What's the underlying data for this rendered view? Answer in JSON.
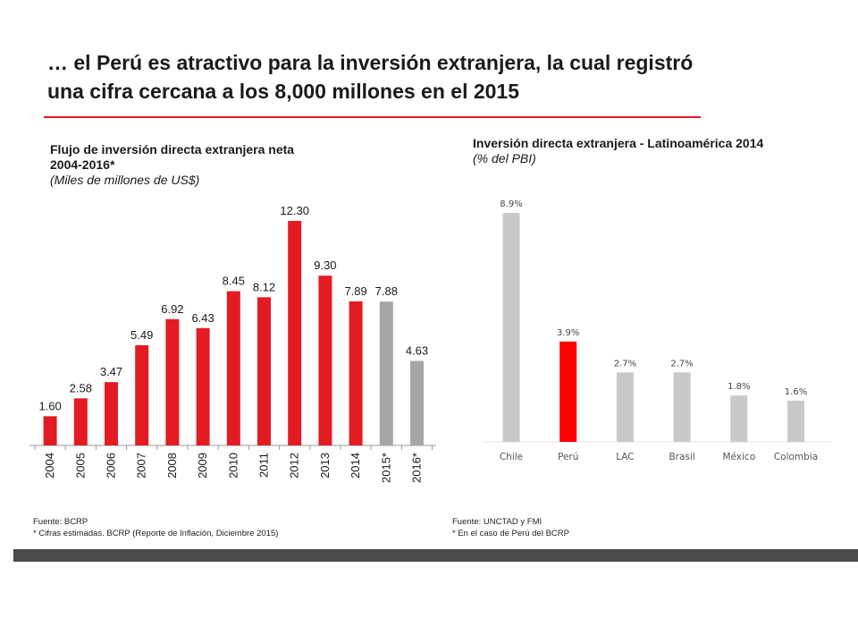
{
  "headline": {
    "line1": "… el Perú es atractivo para la inversión extranjera, la cual registró",
    "line2": "una cifra cercana a los 8,000 millones en el 2015"
  },
  "colors": {
    "accent_red": "#e31b23",
    "estimate_gray": "#a6a6a6",
    "comparison_gray": "#c9c9c9",
    "bar_red": "#ff0000"
  },
  "left_chart": {
    "title_line1": "Flujo de inversión directa extranjera neta",
    "title_line2": "2004-2016*",
    "unit": "(Miles de millones de US$)",
    "source": "Fuente: BCRP",
    "footnote": "* Cifras estimadas. BCRP (Reporte de Inflación, Diciembre 2015)"
  },
  "right_chart": {
    "title": "Inversión directa extranjera - Latinoamérica  2014",
    "unit": "(% del PBI)",
    "source": "Fuente: UNCTAD y FMI",
    "footnote": "* En el caso de Perú del BCRP"
  },
  "chart_data": [
    {
      "type": "bar",
      "title": "Flujo de inversión directa extranjera neta 2004-2016*",
      "ylabel": "(Miles de millones de US$)",
      "categories": [
        "2004",
        "2005",
        "2006",
        "2007",
        "2008",
        "2009",
        "2010",
        "2011",
        "2012",
        "2013",
        "2014",
        "2015*",
        "2016*"
      ],
      "values": [
        1.6,
        2.58,
        3.47,
        5.49,
        6.92,
        6.43,
        8.45,
        8.12,
        12.3,
        9.3,
        7.89,
        7.88,
        4.63
      ],
      "value_labels": [
        "1.60",
        "2.58",
        "3.47",
        "5.49",
        "6.92",
        "6.43",
        "8.45",
        "8.12",
        "12.30",
        "9.30",
        "7.89",
        "7.88",
        "4.63"
      ],
      "estimated": [
        false,
        false,
        false,
        false,
        false,
        false,
        false,
        false,
        false,
        false,
        false,
        true,
        true
      ],
      "ylim": [
        0,
        13
      ],
      "grid": false,
      "legend": "none"
    },
    {
      "type": "bar",
      "title": "Inversión directa extranjera - Latinoamérica  2014",
      "ylabel": "(% del PBI)",
      "categories": [
        "Chile",
        "Perú",
        "LAC",
        "Brasil",
        "México",
        "Colombia"
      ],
      "values": [
        8.9,
        3.9,
        2.7,
        2.7,
        1.8,
        1.6
      ],
      "value_labels": [
        "8.9%",
        "3.9%",
        "2.7%",
        "2.7%",
        "1.8%",
        "1.6%"
      ],
      "highlight": [
        false,
        true,
        false,
        false,
        false,
        false
      ],
      "ylim": [
        0,
        9.5
      ],
      "grid": false,
      "legend": "none"
    }
  ]
}
